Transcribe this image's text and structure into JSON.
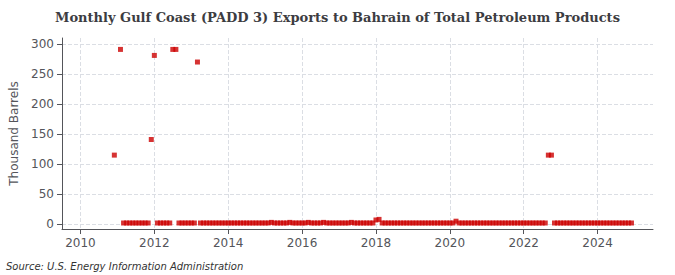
{
  "chart_data": {
    "type": "scatter",
    "title": "Monthly Gulf Coast (PADD 3) Exports to Bahrain of Total Petroleum Products",
    "ylabel": "Thousand Barrels",
    "source": "Source: U.S. Energy Information Administration",
    "color": "#cc0000",
    "marker": "square",
    "grid": true,
    "xlim": [
      2009.5,
      2025.5
    ],
    "ylim": [
      -8,
      310
    ],
    "xticks": [
      2010,
      2012,
      2014,
      2016,
      2018,
      2020,
      2022,
      2024
    ],
    "yticks": [
      0,
      50,
      100,
      150,
      200,
      250,
      300
    ],
    "x": [
      2010.917,
      2011.083,
      2011.167,
      2011.25,
      2011.333,
      2011.417,
      2011.5,
      2011.583,
      2011.667,
      2011.75,
      2011.833,
      2011.917,
      2012.0,
      2012.083,
      2012.167,
      2012.25,
      2012.333,
      2012.417,
      2012.5,
      2012.583,
      2012.667,
      2012.75,
      2012.833,
      2012.917,
      2013.0,
      2013.083,
      2013.167,
      2013.25,
      2013.333,
      2013.417,
      2013.5,
      2013.583,
      2013.667,
      2013.75,
      2013.833,
      2013.917,
      2014.0,
      2014.083,
      2014.167,
      2014.25,
      2014.333,
      2014.417,
      2014.5,
      2014.583,
      2014.667,
      2014.75,
      2014.833,
      2014.917,
      2015.0,
      2015.083,
      2015.167,
      2015.25,
      2015.333,
      2015.417,
      2015.5,
      2015.583,
      2015.667,
      2015.75,
      2015.833,
      2015.917,
      2016.0,
      2016.083,
      2016.167,
      2016.25,
      2016.333,
      2016.417,
      2016.5,
      2016.583,
      2016.667,
      2016.75,
      2016.833,
      2016.917,
      2017.0,
      2017.083,
      2017.167,
      2017.25,
      2017.333,
      2017.417,
      2017.5,
      2017.583,
      2017.667,
      2017.75,
      2017.833,
      2017.917,
      2018.0,
      2018.083,
      2018.167,
      2018.25,
      2018.333,
      2018.417,
      2018.5,
      2018.583,
      2018.667,
      2018.75,
      2018.833,
      2018.917,
      2019.0,
      2019.083,
      2019.167,
      2019.25,
      2019.333,
      2019.417,
      2019.5,
      2019.583,
      2019.667,
      2019.75,
      2019.833,
      2019.917,
      2020.0,
      2020.083,
      2020.167,
      2020.25,
      2020.333,
      2020.417,
      2020.5,
      2020.583,
      2020.667,
      2020.75,
      2020.833,
      2020.917,
      2021.0,
      2021.083,
      2021.167,
      2021.25,
      2021.333,
      2021.417,
      2021.5,
      2021.583,
      2021.667,
      2021.75,
      2021.833,
      2021.917,
      2022.0,
      2022.083,
      2022.167,
      2022.25,
      2022.333,
      2022.417,
      2022.5,
      2022.583,
      2022.667,
      2022.75,
      2022.833,
      2022.917,
      2023.0,
      2023.083,
      2023.167,
      2023.25,
      2023.333,
      2023.417,
      2023.5,
      2023.583,
      2023.667,
      2023.75,
      2023.833,
      2023.917,
      2024.0,
      2024.083,
      2024.167,
      2024.25,
      2024.333,
      2024.417,
      2024.5,
      2024.583,
      2024.667,
      2024.75,
      2024.833,
      2024.917
    ],
    "values": [
      115,
      291,
      2,
      2,
      2,
      2,
      2,
      2,
      2,
      2,
      2,
      141,
      281,
      2,
      2,
      2,
      2,
      2,
      291,
      291,
      2,
      2,
      2,
      2,
      2,
      2,
      270,
      2,
      2,
      2,
      2,
      2,
      2,
      2,
      2,
      2,
      2,
      2,
      2,
      2,
      2,
      2,
      2,
      2,
      2,
      2,
      2,
      2,
      2,
      2,
      3,
      2,
      2,
      2,
      2,
      2,
      3,
      2,
      2,
      2,
      2,
      2,
      3,
      2,
      2,
      2,
      2,
      3,
      2,
      2,
      2,
      2,
      2,
      2,
      2,
      2,
      3,
      2,
      2,
      2,
      2,
      2,
      2,
      2,
      7,
      8,
      2,
      2,
      2,
      2,
      2,
      2,
      2,
      2,
      2,
      2,
      2,
      2,
      2,
      2,
      2,
      2,
      2,
      2,
      2,
      2,
      2,
      2,
      2,
      2,
      5,
      2,
      2,
      2,
      2,
      2,
      2,
      2,
      2,
      2,
      2,
      2,
      2,
      2,
      2,
      2,
      2,
      2,
      2,
      2,
      2,
      2,
      2,
      2,
      2,
      2,
      2,
      2,
      2,
      2,
      115,
      115,
      2,
      2,
      2,
      2,
      2,
      2,
      2,
      2,
      2,
      2,
      2,
      2,
      2,
      2,
      2,
      2,
      2,
      2,
      2,
      2,
      2,
      2,
      2,
      2,
      2,
      2
    ]
  }
}
